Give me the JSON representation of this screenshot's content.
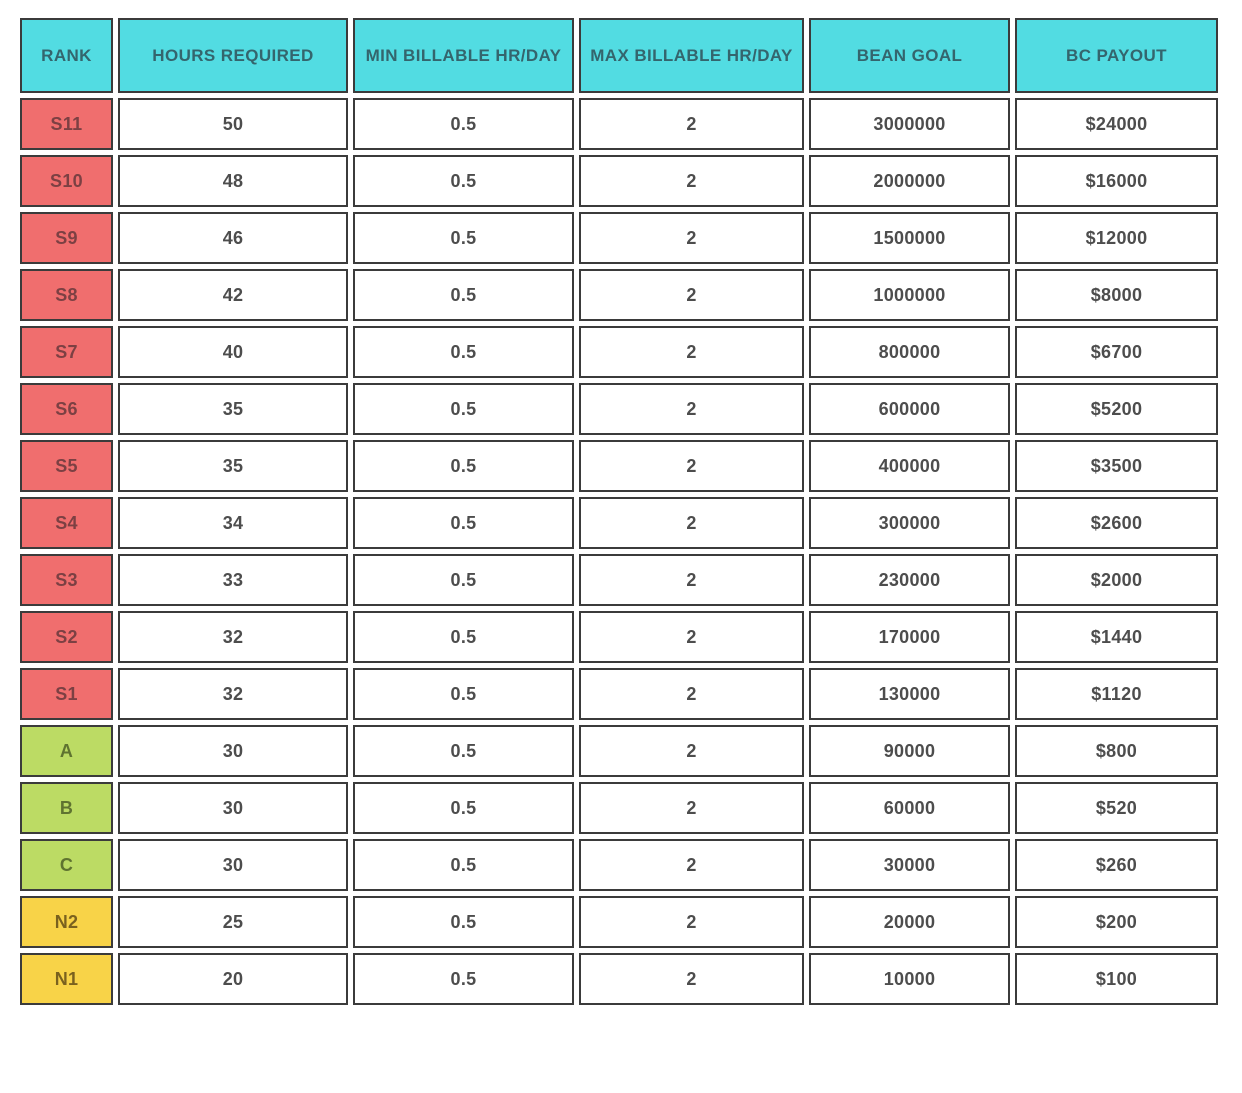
{
  "chart_data": {
    "type": "table",
    "columns": [
      "RANK",
      "HOURS REQUIRED",
      "MIN BILLABLE HR/DAY",
      "MAX BILLABLE HR/DAY",
      "BEAN GOAL",
      "BC PAYOUT"
    ],
    "rows": [
      {
        "rank": "S11",
        "tier": "s",
        "values": [
          "50",
          "0.5",
          "2",
          "3000000",
          "$24000"
        ]
      },
      {
        "rank": "S10",
        "tier": "s",
        "values": [
          "48",
          "0.5",
          "2",
          "2000000",
          "$16000"
        ]
      },
      {
        "rank": "S9",
        "tier": "s",
        "values": [
          "46",
          "0.5",
          "2",
          "1500000",
          "$12000"
        ]
      },
      {
        "rank": "S8",
        "tier": "s",
        "values": [
          "42",
          "0.5",
          "2",
          "1000000",
          "$8000"
        ]
      },
      {
        "rank": "S7",
        "tier": "s",
        "values": [
          "40",
          "0.5",
          "2",
          "800000",
          "$6700"
        ]
      },
      {
        "rank": "S6",
        "tier": "s",
        "values": [
          "35",
          "0.5",
          "2",
          "600000",
          "$5200"
        ]
      },
      {
        "rank": "S5",
        "tier": "s",
        "values": [
          "35",
          "0.5",
          "2",
          "400000",
          "$3500"
        ]
      },
      {
        "rank": "S4",
        "tier": "s",
        "values": [
          "34",
          "0.5",
          "2",
          "300000",
          "$2600"
        ]
      },
      {
        "rank": "S3",
        "tier": "s",
        "values": [
          "33",
          "0.5",
          "2",
          "230000",
          "$2000"
        ]
      },
      {
        "rank": "S2",
        "tier": "s",
        "values": [
          "32",
          "0.5",
          "2",
          "170000",
          "$1440"
        ]
      },
      {
        "rank": "S1",
        "tier": "s",
        "values": [
          "32",
          "0.5",
          "2",
          "130000",
          "$1120"
        ]
      },
      {
        "rank": "A",
        "tier": "abc",
        "values": [
          "30",
          "0.5",
          "2",
          "90000",
          "$800"
        ]
      },
      {
        "rank": "B",
        "tier": "abc",
        "values": [
          "30",
          "0.5",
          "2",
          "60000",
          "$520"
        ]
      },
      {
        "rank": "C",
        "tier": "abc",
        "values": [
          "30",
          "0.5",
          "2",
          "30000",
          "$260"
        ]
      },
      {
        "rank": "N2",
        "tier": "n",
        "values": [
          "25",
          "0.5",
          "2",
          "20000",
          "$200"
        ]
      },
      {
        "rank": "N1",
        "tier": "n",
        "values": [
          "20",
          "0.5",
          "2",
          "10000",
          "$100"
        ]
      }
    ]
  },
  "colors": {
    "header-bg": "#52DCE2",
    "header-text": "#34656D",
    "tier-s-bg": "#F06E6E",
    "tier-s-text": "#7C4043",
    "tier-abc-bg": "#BCDB64",
    "tier-abc-text": "#5F7330",
    "tier-n-bg": "#F8D348",
    "tier-n-text": "#7A611E",
    "cell-text": "#4D4D4D",
    "border": "#3B3B3B"
  }
}
